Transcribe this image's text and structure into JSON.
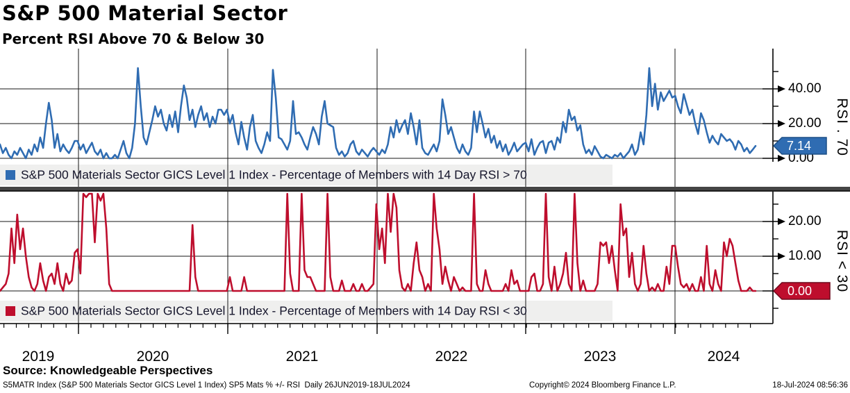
{
  "header": {
    "title": "S&P 500 Material Sector",
    "subtitle": "Percent RSI Above 70 & Below 30"
  },
  "source_line": "Source: Knowledgeable Perspectives",
  "footer": {
    "left": "S5MATR Index (S&P 500 Materials Sector GICS Level 1 Index) SP5 Mats % +/- RSI  Daily 26JUN2019-18JUL2024",
    "center": "Copyright© 2024 Bloomberg Finance L.P.",
    "right": "18-Jul-2024 08:56:36"
  },
  "colors": {
    "blue_line": "#2f6cb2",
    "red_line": "#be0e2d",
    "legend_bg": "#efefee",
    "divider": "#454545",
    "grid": "#161616"
  },
  "x_axis": {
    "years": [
      "2019",
      "2020",
      "2021",
      "2022",
      "2023",
      "2024"
    ],
    "range_label": "26JUN2019-18JUL2024",
    "frequency": "Daily"
  },
  "chart_data": [
    {
      "type": "line",
      "panel": "top",
      "series_name": "S&P 500 Materials Sector GICS Level 1 Index - Percentage of Members with 14 Day RSI > 70",
      "axis_side_label": "RSI . 70",
      "last_value": 7.14,
      "last_value_label": "7.14",
      "ytick_labels": [
        "0.00",
        "20.00",
        "40.00"
      ],
      "yticks": [
        0,
        20,
        40
      ],
      "ylim": [
        0,
        62
      ],
      "x_years": [
        "2019",
        "2020",
        "2021",
        "2022",
        "2023",
        "2024"
      ],
      "values": [
        8,
        3,
        6,
        2,
        0,
        4,
        2,
        6,
        3,
        0,
        5,
        2,
        8,
        4,
        12,
        6,
        20,
        32,
        22,
        6,
        14,
        4,
        8,
        5,
        3,
        6,
        10,
        10,
        5,
        8,
        3,
        6,
        9,
        4,
        2,
        5,
        0,
        3,
        0,
        0,
        2,
        0,
        5,
        10,
        3,
        0,
        6,
        20,
        52,
        30,
        12,
        8,
        15,
        22,
        30,
        24,
        28,
        20,
        16,
        25,
        18,
        27,
        15,
        30,
        42,
        35,
        22,
        28,
        18,
        25,
        30,
        22,
        26,
        18,
        24,
        20,
        28,
        28,
        25,
        28,
        20,
        25,
        15,
        8,
        21,
        12,
        5,
        18,
        25,
        10,
        6,
        3,
        8,
        15,
        10,
        51,
        35,
        12,
        11,
        8,
        5,
        10,
        33,
        14,
        15,
        12,
        8,
        5,
        12,
        18,
        14,
        8,
        24,
        33,
        20,
        19,
        18,
        6,
        2,
        4,
        1,
        3,
        8,
        10,
        4,
        2,
        5,
        3,
        1,
        4,
        6,
        4,
        2,
        5,
        3,
        8,
        18,
        12,
        22,
        15,
        19,
        22,
        14,
        26,
        18,
        8,
        22,
        6,
        3,
        2,
        5,
        8,
        4,
        10,
        34,
        25,
        14,
        18,
        12,
        6,
        3,
        8,
        4,
        2,
        6,
        27,
        15,
        27,
        20,
        12,
        17,
        9,
        13,
        6,
        10,
        4,
        8,
        2,
        5,
        9,
        4,
        6,
        8,
        9,
        4,
        11,
        2,
        6,
        9,
        10,
        3,
        9,
        10,
        5,
        12,
        9,
        21,
        15,
        28,
        22,
        24,
        16,
        19,
        8,
        3,
        5,
        2,
        7,
        4,
        1,
        0,
        2,
        1,
        0,
        2,
        1,
        3,
        0,
        2,
        4,
        8,
        2,
        5,
        15,
        8,
        25,
        52,
        30,
        43,
        28,
        38,
        33,
        36,
        39,
        35,
        36,
        30,
        26,
        37,
        31,
        25,
        28,
        20,
        14,
        26,
        22,
        15,
        9,
        13,
        10,
        8,
        14,
        12,
        10,
        11,
        9,
        5,
        10,
        8,
        4,
        6,
        3,
        5,
        7.14
      ]
    },
    {
      "type": "line",
      "panel": "bottom",
      "series_name": "S&P 500 Materials Sector GICS Level 1 Index - Percentage of Members with 14 Day RSI < 30",
      "axis_side_label": "RSI < 30",
      "last_value": 0.0,
      "last_value_label": "0.00",
      "ytick_labels": [
        "0.00",
        "10.00",
        "20.00"
      ],
      "yticks": [
        0,
        10,
        20
      ],
      "ylim": [
        -9,
        28.5
      ],
      "x_years": [
        "2019",
        "2020",
        "2021",
        "2022",
        "2023",
        "2024"
      ],
      "values": [
        0,
        1,
        2,
        5,
        18,
        8,
        22,
        12,
        18,
        10,
        4,
        1,
        0,
        2,
        8,
        3,
        0,
        4,
        5,
        2,
        8,
        2,
        0,
        5,
        2,
        3,
        11,
        12,
        5,
        28,
        27,
        28,
        28,
        14,
        28,
        26,
        28,
        18,
        2,
        0,
        0,
        0,
        0,
        0,
        0,
        0,
        0,
        0,
        0,
        0,
        0,
        0,
        0,
        0,
        0,
        0,
        0,
        0,
        0,
        0,
        0,
        0,
        0,
        0,
        0,
        0,
        0,
        19,
        4,
        0,
        0,
        0,
        0,
        0,
        0,
        0,
        0,
        0,
        0,
        0,
        4,
        0,
        0,
        0,
        0,
        4,
        0,
        0,
        0,
        0,
        0,
        0,
        0,
        0,
        0,
        0,
        0,
        0,
        0,
        0,
        28,
        5,
        0,
        0,
        0,
        28,
        6,
        4,
        4,
        2,
        0,
        0,
        0,
        0,
        28,
        4,
        0,
        0,
        0,
        3,
        0,
        0,
        0,
        2,
        0,
        0,
        2,
        0,
        0,
        1,
        2,
        25,
        12,
        18,
        8,
        28,
        17,
        28,
        24,
        6,
        1,
        0,
        2,
        0,
        8,
        14,
        6,
        4,
        0,
        2,
        0,
        28,
        18,
        12,
        2,
        7,
        3,
        0,
        4,
        2,
        0,
        1,
        0,
        0,
        0,
        28,
        2,
        0,
        0,
        6,
        2,
        0,
        0,
        0,
        0,
        0,
        2,
        0,
        6,
        2,
        3,
        0,
        0,
        0,
        0,
        4,
        5,
        0,
        0,
        2,
        28,
        4,
        0,
        7,
        0,
        2,
        5,
        11,
        2,
        0,
        28,
        8,
        0,
        3,
        0,
        0,
        0,
        0,
        2,
        14,
        13,
        14,
        8,
        13,
        6,
        0,
        25,
        16,
        18,
        4,
        11,
        2,
        0,
        2,
        13,
        5,
        0,
        1,
        0,
        2,
        0,
        0,
        7,
        2,
        13,
        13,
        7,
        2,
        1,
        2,
        0,
        2,
        0,
        0,
        4,
        0,
        13,
        2,
        0,
        6,
        2,
        0,
        14,
        10,
        15,
        13,
        8,
        3,
        0,
        0,
        0,
        1,
        0,
        0
      ]
    }
  ]
}
